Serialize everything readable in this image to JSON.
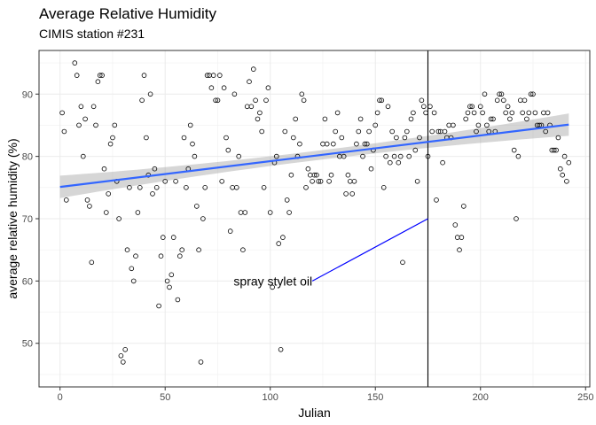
{
  "chart_data": {
    "type": "scatter",
    "title": "Average Relative Humidity",
    "subtitle": "CIMIS station #231",
    "xlabel": "Julian",
    "ylabel": "average relative humidity (%)",
    "xlim": [
      -10,
      252
    ],
    "ylim": [
      43,
      97
    ],
    "xticks": [
      0,
      50,
      100,
      150,
      200,
      250
    ],
    "yticks": [
      50,
      60,
      70,
      80,
      90
    ],
    "grid": true,
    "legend": "none",
    "points": [
      [
        1,
        87
      ],
      [
        2,
        84
      ],
      [
        3,
        73
      ],
      [
        7,
        95
      ],
      [
        8,
        93
      ],
      [
        9,
        85
      ],
      [
        10,
        88
      ],
      [
        11,
        80
      ],
      [
        12,
        86
      ],
      [
        13,
        73
      ],
      [
        14,
        72
      ],
      [
        15,
        63
      ],
      [
        16,
        88
      ],
      [
        17,
        85
      ],
      [
        18,
        92
      ],
      [
        19,
        93
      ],
      [
        20,
        93
      ],
      [
        21,
        78
      ],
      [
        22,
        71
      ],
      [
        23,
        74
      ],
      [
        24,
        82
      ],
      [
        25,
        83
      ],
      [
        26,
        85
      ],
      [
        27,
        76
      ],
      [
        28,
        70
      ],
      [
        29,
        48
      ],
      [
        30,
        47
      ],
      [
        31,
        49
      ],
      [
        32,
        65
      ],
      [
        33,
        75
      ],
      [
        34,
        62
      ],
      [
        35,
        60
      ],
      [
        36,
        64
      ],
      [
        37,
        71
      ],
      [
        38,
        75
      ],
      [
        39,
        89
      ],
      [
        40,
        93
      ],
      [
        41,
        83
      ],
      [
        42,
        77
      ],
      [
        43,
        90
      ],
      [
        44,
        74
      ],
      [
        45,
        78
      ],
      [
        46,
        75
      ],
      [
        47,
        56
      ],
      [
        48,
        64
      ],
      [
        49,
        67
      ],
      [
        50,
        76
      ],
      [
        51,
        60
      ],
      [
        52,
        59
      ],
      [
        53,
        61
      ],
      [
        54,
        67
      ],
      [
        55,
        76
      ],
      [
        56,
        57
      ],
      [
        57,
        64
      ],
      [
        58,
        65
      ],
      [
        59,
        83
      ],
      [
        60,
        75
      ],
      [
        61,
        78
      ],
      [
        62,
        85
      ],
      [
        63,
        82
      ],
      [
        64,
        80
      ],
      [
        65,
        72
      ],
      [
        66,
        65
      ],
      [
        67,
        47
      ],
      [
        68,
        70
      ],
      [
        69,
        75
      ],
      [
        70,
        93
      ],
      [
        71,
        93
      ],
      [
        72,
        91
      ],
      [
        73,
        93
      ],
      [
        74,
        89
      ],
      [
        75,
        89
      ],
      [
        76,
        93
      ],
      [
        77,
        76
      ],
      [
        78,
        91
      ],
      [
        79,
        83
      ],
      [
        80,
        81
      ],
      [
        81,
        68
      ],
      [
        82,
        75
      ],
      [
        83,
        90
      ],
      [
        84,
        75
      ],
      [
        85,
        80
      ],
      [
        86,
        71
      ],
      [
        87,
        65
      ],
      [
        88,
        71
      ],
      [
        89,
        88
      ],
      [
        90,
        92
      ],
      [
        91,
        88
      ],
      [
        92,
        94
      ],
      [
        93,
        89
      ],
      [
        94,
        86
      ],
      [
        95,
        87
      ],
      [
        96,
        84
      ],
      [
        97,
        75
      ],
      [
        98,
        89
      ],
      [
        99,
        91
      ],
      [
        100,
        71
      ],
      [
        101,
        59
      ],
      [
        102,
        79
      ],
      [
        103,
        80
      ],
      [
        104,
        66
      ],
      [
        105,
        49
      ],
      [
        106,
        67
      ],
      [
        107,
        84
      ],
      [
        108,
        73
      ],
      [
        109,
        71
      ],
      [
        110,
        77
      ],
      [
        111,
        83
      ],
      [
        112,
        86
      ],
      [
        113,
        80
      ],
      [
        114,
        82
      ],
      [
        115,
        90
      ],
      [
        116,
        89
      ],
      [
        117,
        75
      ],
      [
        118,
        78
      ],
      [
        119,
        77
      ],
      [
        120,
        76
      ],
      [
        121,
        77
      ],
      [
        122,
        77
      ],
      [
        123,
        76
      ],
      [
        124,
        76
      ],
      [
        125,
        82
      ],
      [
        126,
        86
      ],
      [
        127,
        82
      ],
      [
        128,
        76
      ],
      [
        129,
        77
      ],
      [
        130,
        82
      ],
      [
        131,
        84
      ],
      [
        132,
        87
      ],
      [
        133,
        80
      ],
      [
        134,
        83
      ],
      [
        135,
        80
      ],
      [
        136,
        74
      ],
      [
        137,
        77
      ],
      [
        138,
        76
      ],
      [
        139,
        74
      ],
      [
        140,
        76
      ],
      [
        141,
        82
      ],
      [
        142,
        84
      ],
      [
        143,
        86
      ],
      [
        144,
        80
      ],
      [
        145,
        82
      ],
      [
        146,
        82
      ],
      [
        147,
        84
      ],
      [
        148,
        78
      ],
      [
        149,
        81
      ],
      [
        150,
        85
      ],
      [
        151,
        87
      ],
      [
        152,
        89
      ],
      [
        153,
        89
      ],
      [
        154,
        75
      ],
      [
        155,
        80
      ],
      [
        156,
        88
      ],
      [
        157,
        79
      ],
      [
        158,
        84
      ],
      [
        159,
        80
      ],
      [
        160,
        83
      ],
      [
        161,
        79
      ],
      [
        162,
        80
      ],
      [
        163,
        63
      ],
      [
        164,
        83
      ],
      [
        165,
        84
      ],
      [
        166,
        80
      ],
      [
        167,
        86
      ],
      [
        168,
        87
      ],
      [
        169,
        81
      ],
      [
        170,
        76
      ],
      [
        171,
        83
      ],
      [
        172,
        89
      ],
      [
        173,
        88
      ],
      [
        174,
        87
      ],
      [
        175,
        80
      ],
      [
        176,
        88
      ],
      [
        177,
        84
      ],
      [
        178,
        87
      ],
      [
        179,
        73
      ],
      [
        180,
        84
      ],
      [
        181,
        84
      ],
      [
        182,
        79
      ],
      [
        183,
        84
      ],
      [
        184,
        83
      ],
      [
        185,
        85
      ],
      [
        186,
        83
      ],
      [
        187,
        85
      ],
      [
        188,
        69
      ],
      [
        189,
        67
      ],
      [
        190,
        65
      ],
      [
        191,
        67
      ],
      [
        192,
        72
      ],
      [
        193,
        86
      ],
      [
        194,
        87
      ],
      [
        195,
        88
      ],
      [
        196,
        88
      ],
      [
        197,
        87
      ],
      [
        198,
        84
      ],
      [
        199,
        85
      ],
      [
        200,
        88
      ],
      [
        201,
        87
      ],
      [
        202,
        90
      ],
      [
        203,
        85
      ],
      [
        204,
        84
      ],
      [
        205,
        86
      ],
      [
        206,
        86
      ],
      [
        207,
        84
      ],
      [
        208,
        89
      ],
      [
        209,
        90
      ],
      [
        210,
        90
      ],
      [
        211,
        89
      ],
      [
        212,
        87
      ],
      [
        213,
        88
      ],
      [
        214,
        86
      ],
      [
        215,
        87
      ],
      [
        216,
        81
      ],
      [
        217,
        70
      ],
      [
        218,
        80
      ],
      [
        219,
        89
      ],
      [
        220,
        87
      ],
      [
        221,
        89
      ],
      [
        222,
        86
      ],
      [
        223,
        87
      ],
      [
        224,
        90
      ],
      [
        225,
        90
      ],
      [
        226,
        87
      ],
      [
        227,
        85
      ],
      [
        228,
        85
      ],
      [
        229,
        85
      ],
      [
        230,
        87
      ],
      [
        231,
        84
      ],
      [
        232,
        87
      ],
      [
        233,
        85
      ],
      [
        234,
        81
      ],
      [
        235,
        81
      ],
      [
        236,
        81
      ],
      [
        237,
        83
      ],
      [
        238,
        78
      ],
      [
        239,
        77
      ],
      [
        240,
        80
      ],
      [
        241,
        76
      ],
      [
        242,
        79
      ]
    ],
    "trend": {
      "method": "lm",
      "start": [
        0,
        75.1
      ],
      "end": [
        242,
        85.1
      ],
      "ci_halfwidth_ends": 1.8,
      "ci_halfwidth_mid": 0.75,
      "color": "#3366ff"
    },
    "vline": {
      "x": 175,
      "color": "#000000"
    },
    "annotation": {
      "text": "spray stylet oil",
      "text_at": [
        120,
        60
      ],
      "arrow_to": [
        175,
        70
      ],
      "color": "#0000ff"
    }
  }
}
